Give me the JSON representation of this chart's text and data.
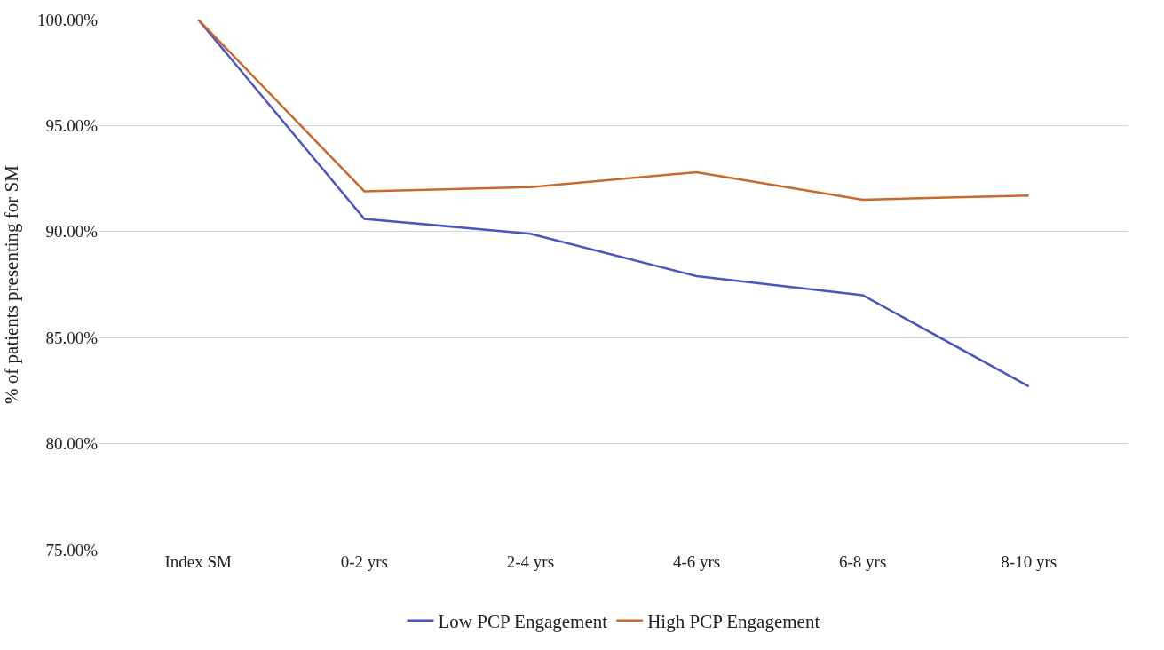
{
  "chart_data": {
    "type": "line",
    "ylabel": "% of patients presenting for SM",
    "categories": [
      "Index SM",
      "0-2 yrs",
      "2-4 yrs",
      "4-6 yrs",
      "6-8 yrs",
      "8-10 yrs"
    ],
    "series": [
      {
        "name": "Low PCP Engagement",
        "color": "#4a55c0",
        "values": [
          100,
          90.6,
          89.9,
          87.9,
          87.0,
          82.7
        ]
      },
      {
        "name": "High PCP Engagement",
        "color": "#c8692c",
        "values": [
          100,
          91.9,
          92.1,
          92.8,
          91.5,
          91.7
        ]
      }
    ],
    "ylim": [
      75,
      100
    ],
    "yticks": [
      {
        "value": 75,
        "label": "75.00%"
      },
      {
        "value": 80,
        "label": "80.00%"
      },
      {
        "value": 85,
        "label": "85.00%"
      },
      {
        "value": 90,
        "label": "90.00%"
      },
      {
        "value": 95,
        "label": "95.00%"
      },
      {
        "value": 100,
        "label": "100.00%"
      }
    ],
    "grid": "y",
    "legend": "bottom",
    "marker": "none",
    "line_style": "solid"
  }
}
